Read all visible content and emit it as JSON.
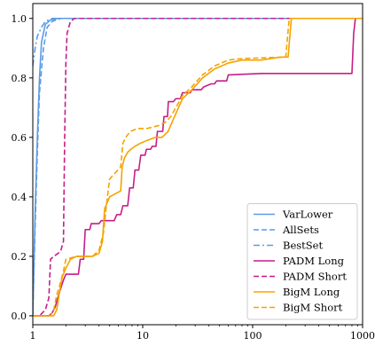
{
  "chart_data": {
    "type": "line",
    "title": "",
    "xlabel": "",
    "ylabel": "",
    "xscale": "log",
    "xlim": [
      1,
      1000
    ],
    "ylim": [
      -0.03,
      1.05
    ],
    "xticks": [
      1,
      10,
      100,
      1000
    ],
    "xtick_labels": [
      "1",
      "10",
      "100",
      "1000"
    ],
    "yticks": [
      0.0,
      0.2,
      0.4,
      0.6,
      0.8,
      1.0
    ],
    "ytick_labels": [
      "0.0",
      "0.2",
      "0.4",
      "0.6",
      "0.8",
      "1.0"
    ],
    "grid": false,
    "legend_position": "bottom-right",
    "series": [
      {
        "name": "VarLower",
        "color": "#5b9be6",
        "dash": "solid",
        "points": [
          [
            1,
            0.0
          ],
          [
            1.05,
            0.35
          ],
          [
            1.1,
            0.6
          ],
          [
            1.15,
            0.8
          ],
          [
            1.2,
            0.92
          ],
          [
            1.3,
            0.98
          ],
          [
            1.45,
            0.995
          ],
          [
            1.7,
            1.0
          ],
          [
            1000,
            1.0
          ]
        ]
      },
      {
        "name": "AllSets",
        "color": "#5b9be6",
        "dash": "dashed",
        "points": [
          [
            1,
            0.0
          ],
          [
            1.05,
            0.3
          ],
          [
            1.1,
            0.55
          ],
          [
            1.15,
            0.75
          ],
          [
            1.25,
            0.9
          ],
          [
            1.35,
            0.97
          ],
          [
            1.5,
            0.99
          ],
          [
            1.8,
            1.0
          ],
          [
            1000,
            1.0
          ]
        ]
      },
      {
        "name": "BestSet",
        "color": "#5b9be6",
        "dash": "dashdot",
        "points": [
          [
            1,
            0.84
          ],
          [
            1.05,
            0.9
          ],
          [
            1.1,
            0.94
          ],
          [
            1.2,
            0.97
          ],
          [
            1.3,
            0.99
          ],
          [
            1.5,
            1.0
          ],
          [
            1000,
            1.0
          ]
        ]
      },
      {
        "name": "PADM Long",
        "color": "#c41e8a",
        "dash": "solid",
        "points": [
          [
            1,
            0.0
          ],
          [
            1.4,
            0.0
          ],
          [
            1.5,
            0.01
          ],
          [
            1.6,
            0.03
          ],
          [
            1.75,
            0.08
          ],
          [
            1.9,
            0.12
          ],
          [
            2.0,
            0.14
          ],
          [
            2.6,
            0.14
          ],
          [
            2.7,
            0.19
          ],
          [
            2.9,
            0.19
          ],
          [
            3.0,
            0.29
          ],
          [
            3.3,
            0.29
          ],
          [
            3.4,
            0.31
          ],
          [
            4.0,
            0.31
          ],
          [
            4.2,
            0.32
          ],
          [
            5.5,
            0.32
          ],
          [
            5.8,
            0.34
          ],
          [
            6.3,
            0.34
          ],
          [
            6.6,
            0.37
          ],
          [
            7.3,
            0.37
          ],
          [
            7.6,
            0.43
          ],
          [
            8.2,
            0.43
          ],
          [
            8.5,
            0.49
          ],
          [
            9.2,
            0.49
          ],
          [
            9.6,
            0.54
          ],
          [
            10.5,
            0.54
          ],
          [
            10.8,
            0.56
          ],
          [
            11.8,
            0.56
          ],
          [
            12.2,
            0.57
          ],
          [
            13.2,
            0.57
          ],
          [
            13.6,
            0.62
          ],
          [
            15.2,
            0.62
          ],
          [
            15.6,
            0.67
          ],
          [
            16.8,
            0.67
          ],
          [
            17.1,
            0.72
          ],
          [
            19,
            0.72
          ],
          [
            20,
            0.73
          ],
          [
            22,
            0.73
          ],
          [
            23,
            0.75
          ],
          [
            27,
            0.75
          ],
          [
            28,
            0.76
          ],
          [
            34,
            0.76
          ],
          [
            36,
            0.77
          ],
          [
            42,
            0.78
          ],
          [
            45,
            0.78
          ],
          [
            47,
            0.79
          ],
          [
            58,
            0.79
          ],
          [
            60,
            0.81
          ],
          [
            120,
            0.815
          ],
          [
            200,
            0.815
          ],
          [
            800,
            0.815
          ],
          [
            830,
            0.95
          ],
          [
            860,
            1.0
          ],
          [
            1000,
            1.0
          ]
        ]
      },
      {
        "name": "PADM Short",
        "color": "#c41e8a",
        "dash": "dashed",
        "points": [
          [
            1,
            0.0
          ],
          [
            1.15,
            0.0
          ],
          [
            1.3,
            0.02
          ],
          [
            1.4,
            0.06
          ],
          [
            1.45,
            0.19
          ],
          [
            1.55,
            0.2
          ],
          [
            1.7,
            0.21
          ],
          [
            1.8,
            0.22
          ],
          [
            1.9,
            0.25
          ],
          [
            1.95,
            0.6
          ],
          [
            2.0,
            0.85
          ],
          [
            2.05,
            0.95
          ],
          [
            2.2,
            0.99
          ],
          [
            2.4,
            1.0
          ],
          [
            1000,
            1.0
          ]
        ]
      },
      {
        "name": "BigM Long",
        "color": "#f5a300",
        "dash": "solid",
        "points": [
          [
            1,
            0.0
          ],
          [
            1.55,
            0.0
          ],
          [
            1.65,
            0.02
          ],
          [
            1.75,
            0.08
          ],
          [
            1.85,
            0.13
          ],
          [
            2.0,
            0.16
          ],
          [
            2.2,
            0.19
          ],
          [
            2.5,
            0.2
          ],
          [
            3.5,
            0.2
          ],
          [
            4.0,
            0.21
          ],
          [
            4.3,
            0.25
          ],
          [
            4.5,
            0.36
          ],
          [
            5.0,
            0.4
          ],
          [
            5.6,
            0.41
          ],
          [
            6.3,
            0.42
          ],
          [
            6.5,
            0.5
          ],
          [
            6.8,
            0.53
          ],
          [
            7.3,
            0.55
          ],
          [
            7.8,
            0.56
          ],
          [
            8.5,
            0.57
          ],
          [
            9.5,
            0.58
          ],
          [
            11,
            0.59
          ],
          [
            13,
            0.6
          ],
          [
            15,
            0.6
          ],
          [
            17,
            0.62
          ],
          [
            20,
            0.68
          ],
          [
            23,
            0.73
          ],
          [
            28,
            0.76
          ],
          [
            35,
            0.8
          ],
          [
            45,
            0.83
          ],
          [
            60,
            0.85
          ],
          [
            80,
            0.86
          ],
          [
            120,
            0.86
          ],
          [
            180,
            0.87
          ],
          [
            210,
            0.87
          ],
          [
            225,
            1.0
          ],
          [
            1000,
            1.0
          ]
        ]
      },
      {
        "name": "BigM Short",
        "color": "#f5a300",
        "dash": "dashed",
        "points": [
          [
            1,
            0.0
          ],
          [
            1.45,
            0.0
          ],
          [
            1.55,
            0.02
          ],
          [
            1.65,
            0.07
          ],
          [
            1.75,
            0.1
          ],
          [
            1.9,
            0.15
          ],
          [
            2.0,
            0.19
          ],
          [
            2.5,
            0.2
          ],
          [
            3.5,
            0.2
          ],
          [
            4.0,
            0.22
          ],
          [
            4.4,
            0.28
          ],
          [
            4.7,
            0.38
          ],
          [
            5.0,
            0.46
          ],
          [
            5.6,
            0.48
          ],
          [
            6.3,
            0.5
          ],
          [
            6.6,
            0.58
          ],
          [
            7.0,
            0.6
          ],
          [
            7.7,
            0.62
          ],
          [
            9,
            0.63
          ],
          [
            11,
            0.63
          ],
          [
            14,
            0.64
          ],
          [
            16,
            0.65
          ],
          [
            18,
            0.67
          ],
          [
            20,
            0.7
          ],
          [
            23,
            0.74
          ],
          [
            28,
            0.77
          ],
          [
            35,
            0.81
          ],
          [
            45,
            0.84
          ],
          [
            60,
            0.86
          ],
          [
            80,
            0.865
          ],
          [
            200,
            0.87
          ],
          [
            215,
            1.0
          ],
          [
            1000,
            1.0
          ]
        ]
      }
    ]
  }
}
